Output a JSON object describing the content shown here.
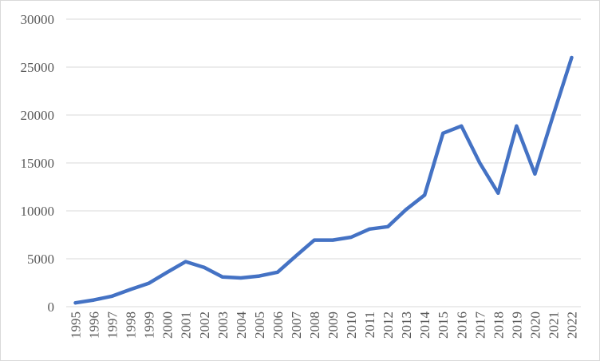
{
  "chart_data": {
    "type": "line",
    "title": "",
    "xlabel": "",
    "ylabel": "",
    "x": [
      "1995",
      "1996",
      "1997",
      "1998",
      "1999",
      "2000",
      "2001",
      "2002",
      "2003",
      "2004",
      "2005",
      "2006",
      "2007",
      "2008",
      "2009",
      "2010",
      "2011",
      "2012",
      "2013",
      "2014",
      "2015",
      "2016",
      "2017",
      "2018",
      "2019",
      "2020",
      "2021",
      "2022"
    ],
    "series": [
      {
        "values": [
          400,
          700,
          1100,
          1800,
          2450,
          3600,
          4700,
          4100,
          3100,
          3000,
          3200,
          3600,
          5300,
          6950,
          6950,
          7250,
          8100,
          8350,
          10150,
          11650,
          18100,
          18850,
          15000,
          11850,
          18850,
          13850,
          20000,
          26000
        ],
        "color": "#4472c4"
      }
    ],
    "ylim": [
      0,
      30000
    ],
    "yticks": [
      0,
      5000,
      10000,
      15000,
      20000,
      25000,
      30000
    ],
    "grid": "horizontal",
    "legend": "none"
  }
}
